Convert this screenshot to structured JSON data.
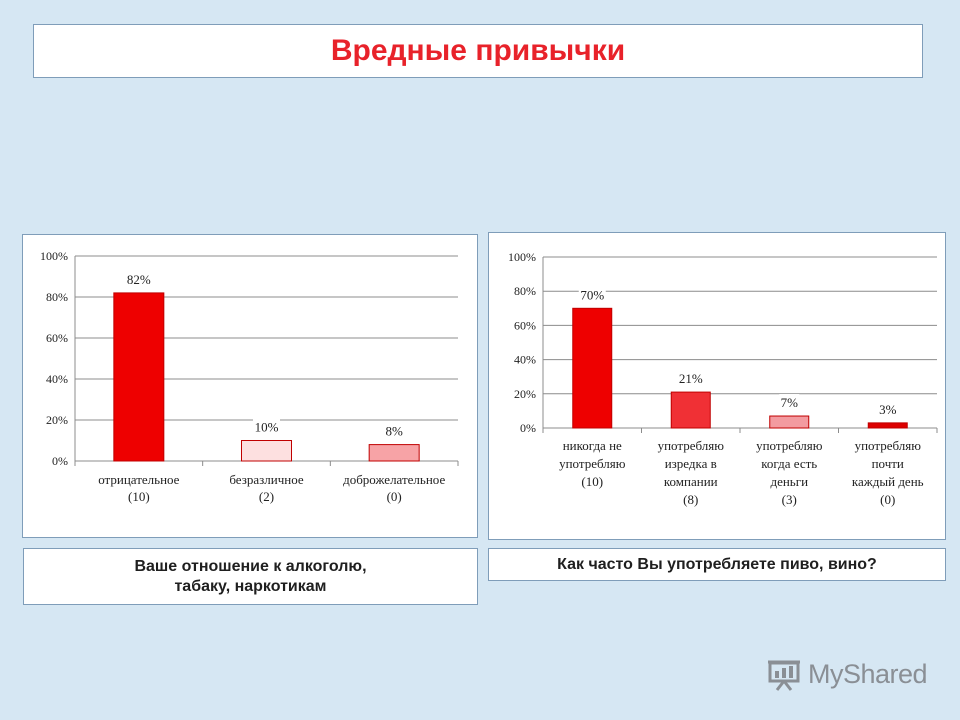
{
  "page": {
    "title": "Вредные привычки",
    "logo_text": "MyShared"
  },
  "captions": {
    "chart1": "Ваше отношение к алкоголю,\nтабаку, наркотикам",
    "chart2": "Как часто Вы употребляете пиво, вино?"
  },
  "chart_data": [
    {
      "type": "bar",
      "categories": [
        [
          "отрицательное",
          "(10)"
        ],
        [
          "безразличное",
          "(2)"
        ],
        [
          "доброжелательное",
          "(0)"
        ]
      ],
      "values": [
        82,
        10,
        8
      ],
      "data_labels": [
        "82%",
        "10%",
        "8%"
      ],
      "bar_colors": [
        "#ee0000",
        "#fde0e0",
        "#f7a3a6"
      ],
      "yticks": [
        "0%",
        "20%",
        "40%",
        "60%",
        "80%",
        "100%"
      ],
      "ylim": [
        0,
        100
      ],
      "grid": true,
      "title": "",
      "xlabel": "",
      "ylabel": ""
    },
    {
      "type": "bar",
      "categories": [
        [
          "никогда не",
          "употребляю",
          "(10)"
        ],
        [
          "употребляю",
          "изредка в",
          "компании",
          "(8)"
        ],
        [
          "употребляю",
          "когда есть",
          "деньги",
          "(3)"
        ],
        [
          "употребляю",
          "почти",
          "каждый день",
          "(0)"
        ]
      ],
      "values": [
        70,
        21,
        7,
        3
      ],
      "data_labels": [
        "70%",
        "21%",
        "7%",
        "3%"
      ],
      "bar_colors": [
        "#ee0000",
        "#f03035",
        "#f39ba0",
        "#dd0000"
      ],
      "yticks": [
        "0%",
        "20%",
        "40%",
        "60%",
        "80%",
        "100%"
      ],
      "ylim": [
        0,
        100
      ],
      "grid": true,
      "title": "",
      "xlabel": "",
      "ylabel": ""
    }
  ]
}
